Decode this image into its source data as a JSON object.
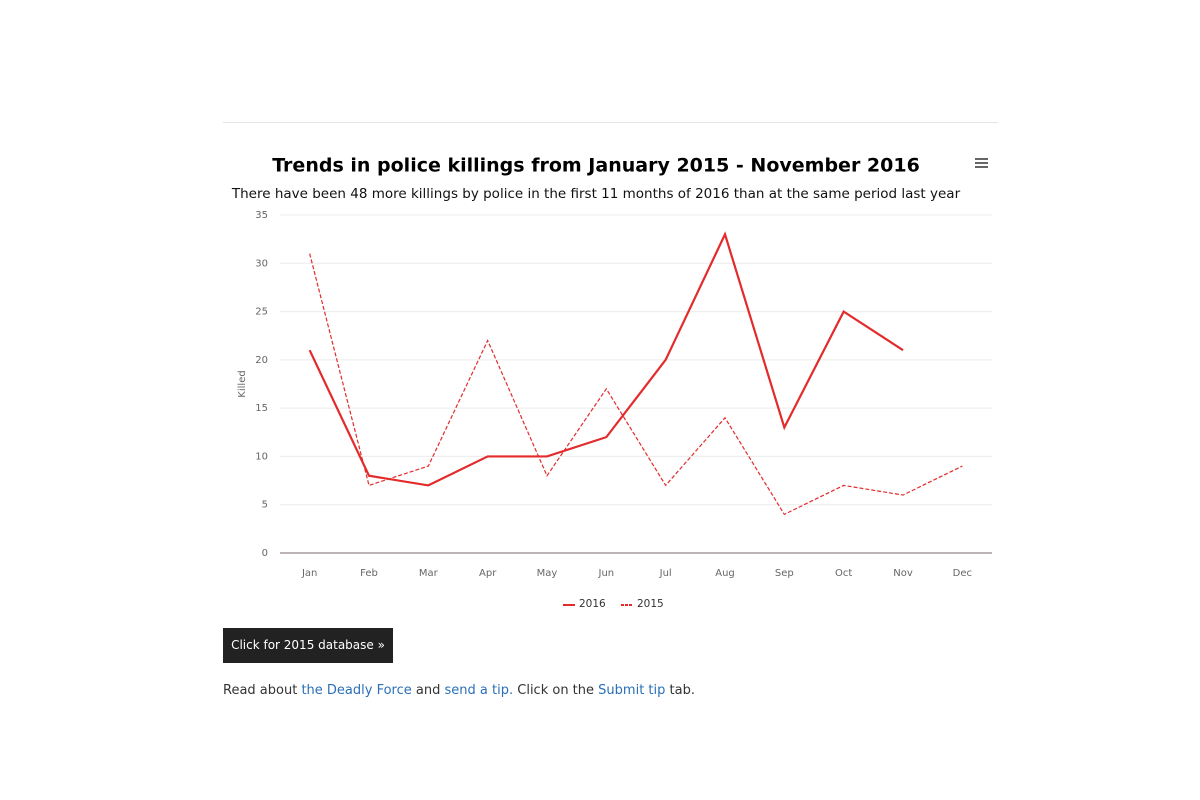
{
  "chart_data": {
    "type": "line",
    "title": "Trends in police killings from January 2015 - November 2016",
    "subtitle": "There have been 48 more killings by police in the first 11 months of 2016 than at the same period last year",
    "y_label": "Killed",
    "categories": [
      "Jan",
      "Feb",
      "Mar",
      "Apr",
      "May",
      "Jun",
      "Jul",
      "Aug",
      "Sep",
      "Oct",
      "Nov",
      "Dec"
    ],
    "series": [
      {
        "name": "2016",
        "color": "#e32b2b",
        "dashed": false,
        "values": [
          21,
          8,
          7,
          10,
          10,
          12,
          20,
          33,
          13,
          25,
          21,
          null
        ]
      },
      {
        "name": "2015",
        "color": "#e32b2b",
        "dashed": true,
        "values": [
          31,
          7,
          9,
          22,
          8,
          17,
          7,
          14,
          4,
          7,
          6,
          9
        ]
      }
    ],
    "ylim": [
      0,
      35
    ],
    "yticks": [
      0,
      5,
      10,
      15,
      20,
      25,
      30,
      35
    ],
    "grid": true,
    "legend": "bottom"
  },
  "button": {
    "label": "Click for 2015 database »"
  },
  "footer": {
    "parts": [
      "Read about",
      "the Deadly Force",
      "and",
      "send a tip.",
      "Click on the",
      "Submit tip",
      "tab."
    ]
  }
}
